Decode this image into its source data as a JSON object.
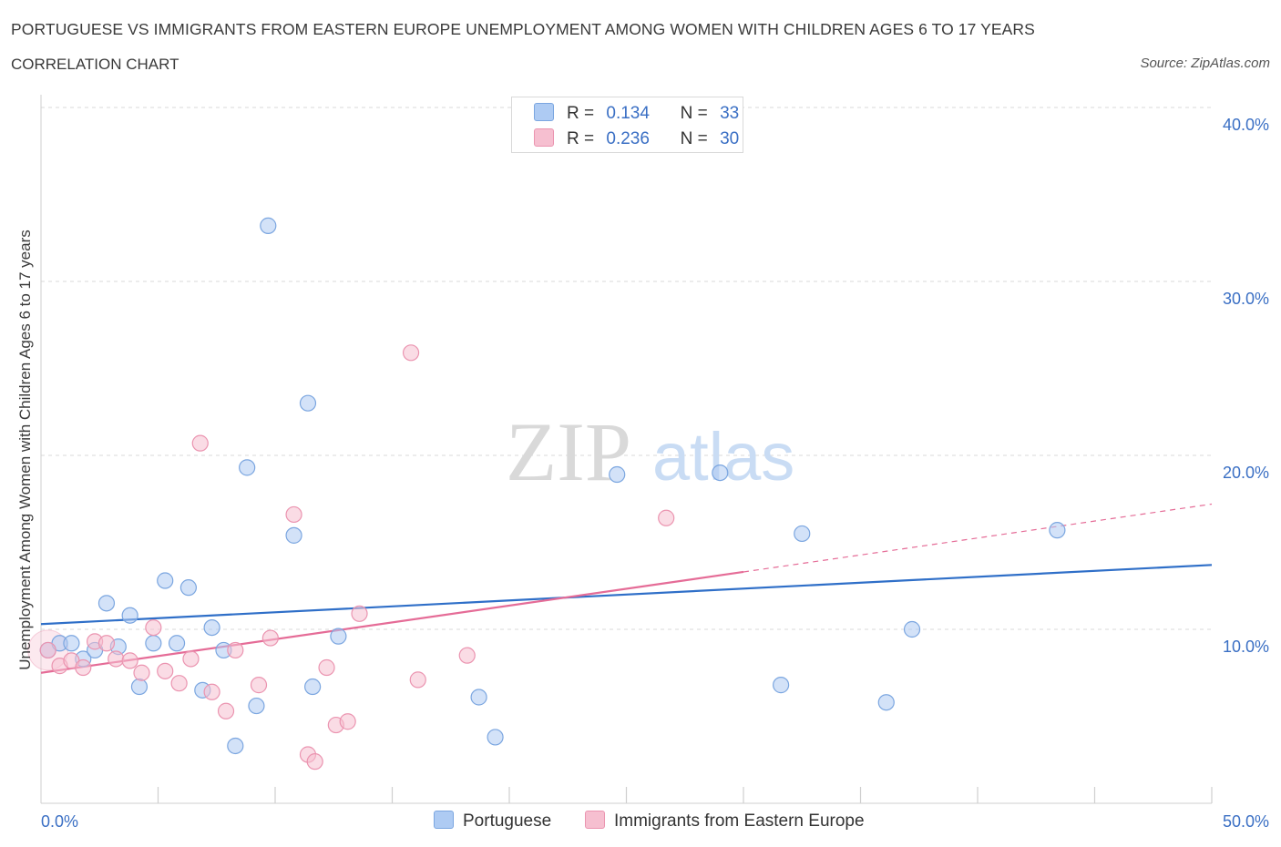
{
  "header": {
    "title": "PORTUGUESE VS IMMIGRANTS FROM EASTERN EUROPE UNEMPLOYMENT AMONG WOMEN WITH CHILDREN AGES 6 TO 17 YEARS",
    "subtitle": "CORRELATION CHART",
    "source": "Source: ZipAtlas.com"
  },
  "watermark": {
    "zip": "ZIP",
    "atlas": "atlas"
  },
  "legend": {
    "r_label": "R =",
    "n_label": "N =",
    "series": [
      {
        "r": "0.134",
        "n": "33"
      },
      {
        "r": "0.236",
        "n": "30"
      }
    ]
  },
  "colors": {
    "blue_fill": "#aecbf3",
    "blue_stroke": "#7ba6e0",
    "blue_line": "#2f6fc8",
    "pink_fill": "#f6bfd0",
    "pink_stroke": "#eb94b0",
    "pink_line": "#e56c97",
    "axis_text": "#3a6fc4",
    "grid": "#d8d8d8"
  },
  "chart_data": {
    "type": "scatter",
    "title": "PORTUGUESE VS IMMIGRANTS FROM EASTERN EUROPE UNEMPLOYMENT AMONG WOMEN WITH CHILDREN AGES 6 TO 17 YEARS",
    "xlabel": "",
    "ylabel": "Unemployment Among Women with Children Ages 6 to 17 years",
    "xlim": [
      0,
      50
    ],
    "ylim": [
      0,
      40
    ],
    "x_tick_labels": [
      "0.0%",
      "50.0%"
    ],
    "y_ticks": [
      10,
      20,
      30,
      40
    ],
    "y_tick_labels": [
      "10.0%",
      "20.0%",
      "30.0%",
      "40.0%"
    ],
    "grid": true,
    "legend_placement": "top-center",
    "series": [
      {
        "name": "Portuguese",
        "r": 0.134,
        "n": 33,
        "points": [
          [
            0.3,
            8.8
          ],
          [
            0.8,
            9.2
          ],
          [
            1.3,
            9.2
          ],
          [
            1.8,
            8.3
          ],
          [
            2.3,
            8.8
          ],
          [
            2.8,
            11.5
          ],
          [
            3.3,
            9.0
          ],
          [
            3.8,
            10.8
          ],
          [
            4.2,
            6.7
          ],
          [
            4.8,
            9.2
          ],
          [
            5.3,
            12.8
          ],
          [
            5.8,
            9.2
          ],
          [
            6.3,
            12.4
          ],
          [
            6.9,
            6.5
          ],
          [
            7.3,
            10.1
          ],
          [
            7.8,
            8.8
          ],
          [
            8.3,
            3.3
          ],
          [
            8.8,
            19.3
          ],
          [
            9.2,
            5.6
          ],
          [
            9.7,
            33.2
          ],
          [
            10.8,
            15.4
          ],
          [
            11.4,
            23.0
          ],
          [
            11.6,
            6.7
          ],
          [
            12.7,
            9.6
          ],
          [
            18.7,
            6.1
          ],
          [
            19.4,
            3.8
          ],
          [
            24.6,
            18.9
          ],
          [
            29.0,
            19.0
          ],
          [
            31.6,
            6.8
          ],
          [
            32.5,
            15.5
          ],
          [
            36.1,
            5.8
          ],
          [
            37.2,
            10.0
          ],
          [
            43.4,
            15.7
          ]
        ],
        "trend": [
          [
            0,
            10.3
          ],
          [
            50,
            13.7
          ]
        ]
      },
      {
        "name": "Immigrants from Eastern Europe",
        "r": 0.236,
        "n": 30,
        "points": [
          [
            0.3,
            8.8
          ],
          [
            0.8,
            7.9
          ],
          [
            1.3,
            8.2
          ],
          [
            1.8,
            7.8
          ],
          [
            2.3,
            9.3
          ],
          [
            2.8,
            9.2
          ],
          [
            3.2,
            8.3
          ],
          [
            3.8,
            8.2
          ],
          [
            4.3,
            7.5
          ],
          [
            4.8,
            10.1
          ],
          [
            5.3,
            7.6
          ],
          [
            5.9,
            6.9
          ],
          [
            6.4,
            8.3
          ],
          [
            6.8,
            20.7
          ],
          [
            7.3,
            6.4
          ],
          [
            7.9,
            5.3
          ],
          [
            8.3,
            8.8
          ],
          [
            9.3,
            6.8
          ],
          [
            9.8,
            9.5
          ],
          [
            10.8,
            16.6
          ],
          [
            11.4,
            2.8
          ],
          [
            11.7,
            2.4
          ],
          [
            12.2,
            7.8
          ],
          [
            12.6,
            4.5
          ],
          [
            13.1,
            4.7
          ],
          [
            13.6,
            10.9
          ],
          [
            15.8,
            25.9
          ],
          [
            16.1,
            7.1
          ],
          [
            18.2,
            8.5
          ],
          [
            26.7,
            16.4
          ]
        ],
        "trend": [
          [
            0,
            7.5
          ],
          [
            30,
            13.3
          ]
        ],
        "trend_dashed": [
          [
            30,
            13.3
          ],
          [
            50,
            17.2
          ]
        ]
      }
    ]
  }
}
